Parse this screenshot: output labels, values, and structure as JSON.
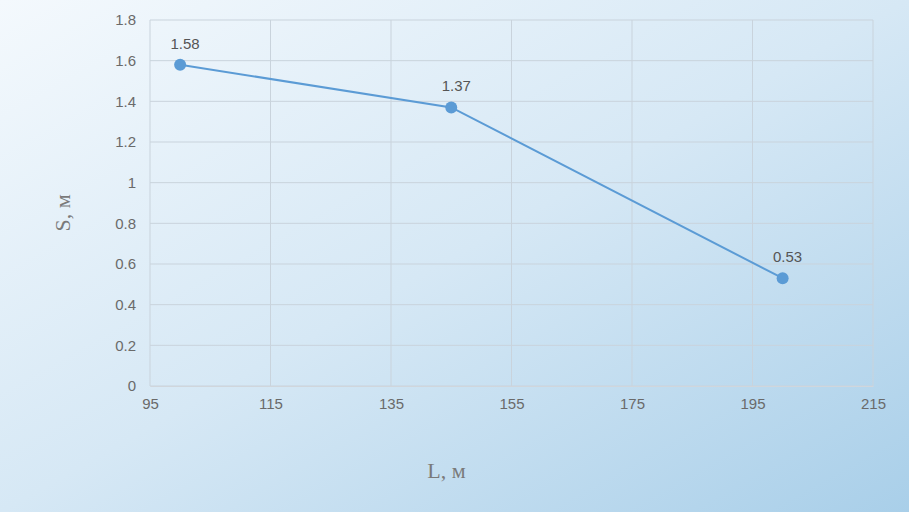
{
  "chart_data": {
    "type": "line",
    "x_label": "L, м",
    "y_label": "S, м",
    "x": [
      100,
      145,
      200
    ],
    "values": [
      1.58,
      1.37,
      0.53
    ],
    "color": "#5b9bd5",
    "marker": "circle",
    "line_style": "solid",
    "data_labels": true,
    "grid": true,
    "xlim": [
      95,
      215
    ],
    "xticks": [
      95,
      115,
      135,
      155,
      175,
      195,
      215
    ],
    "ylim": [
      0,
      1.8
    ],
    "yticks": [
      0,
      0.2,
      0.4,
      0.6,
      0.8,
      1,
      1.2,
      1.4,
      1.6,
      1.8
    ]
  }
}
